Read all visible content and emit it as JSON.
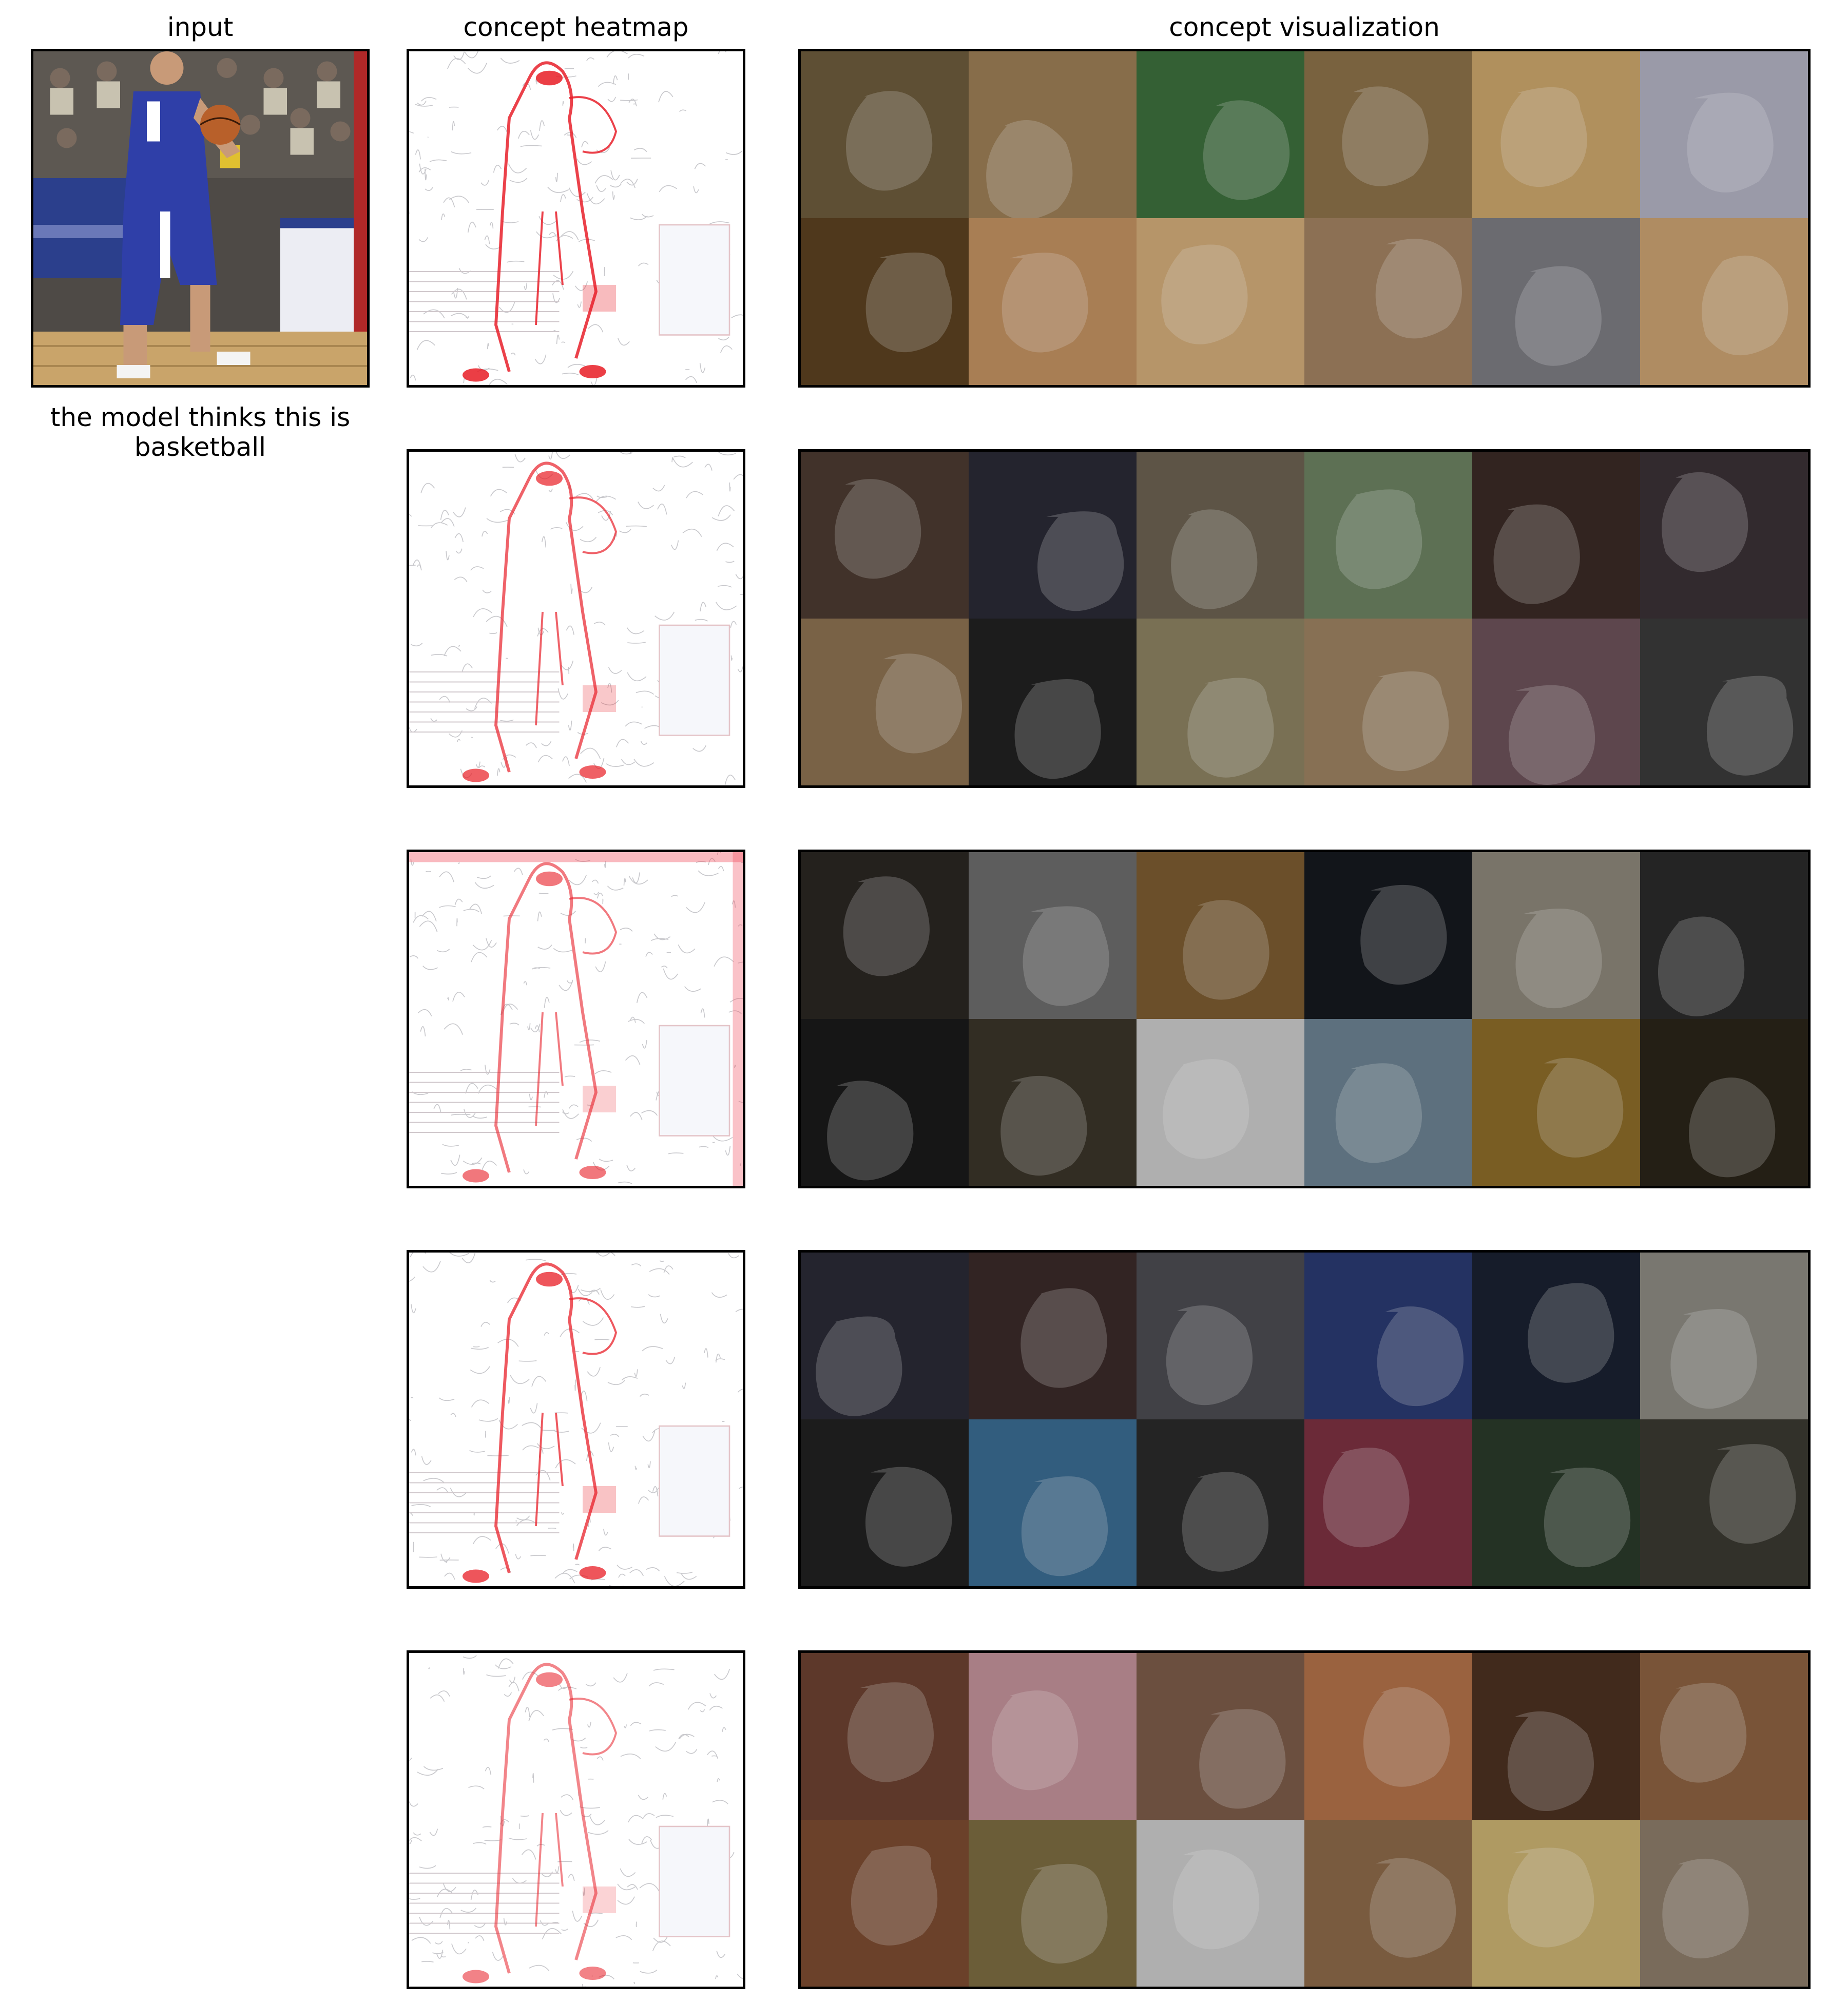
{
  "titles": {
    "input": "input",
    "heatmap": "concept heatmap",
    "visualization": "concept visualization"
  },
  "caption_line1": "the model thinks this is",
  "caption_line2": "basketball",
  "input_image": {
    "subject": "basketball player in blue uniform dribbling on a hardwood court, crowd in background",
    "colors": {
      "court": "#c9a46a",
      "uniform": "#2f3fa8",
      "crowd": "#5a5650",
      "wall": "#e8e8f0"
    }
  },
  "concepts": [
    {
      "heat_intensity": 0.85,
      "tiles": [
        "#6b5a3c",
        "#9a7d55",
        "#3c6e3c",
        "#8a7048",
        "#c9a46a",
        "#b0b0c0",
        "#5a4020",
        "#c09060",
        "#d0aa78",
        "#a08060",
        "#7a7a80",
        "#c8a070"
      ]
    },
    {
      "heat_intensity": 0.7,
      "tiles": [
        "#4a3a30",
        "#2a2a35",
        "#6a6050",
        "#6a8060",
        "#3a2a25",
        "#3a3035",
        "#8a7050",
        "#202020",
        "#8a8060",
        "#9a8060",
        "#6a5058",
        "#3a3a3a"
      ]
    },
    {
      "heat_intensity": 0.6,
      "tiles": [
        "#2a2622",
        "#6a6a6a",
        "#7a5a30",
        "#15181e",
        "#8a8578",
        "#2a2a2a",
        "#1a1a1a",
        "#3a3428",
        "#c8c8c8",
        "#6a8090",
        "#8a6a28",
        "#2a2418"
      ]
    },
    {
      "heat_intensity": 0.75,
      "tiles": [
        "#2a2a35",
        "#3a2a28",
        "#4a4a50",
        "#2a3a70",
        "#1a2030",
        "#8a8880",
        "#202020",
        "#3a6a90",
        "#2a2a2a",
        "#7a3040",
        "#2a3a2a",
        "#3a3830"
      ]
    },
    {
      "heat_intensity": 0.55,
      "tiles": [
        "#6a4030",
        "#c09098",
        "#7a5a48",
        "#b07048",
        "#4a3020",
        "#8a6040",
        "#7a4a30",
        "#7a6a40",
        "#c8c8c8",
        "#8a6848",
        "#c8b070",
        "#8a7a68"
      ]
    }
  ]
}
